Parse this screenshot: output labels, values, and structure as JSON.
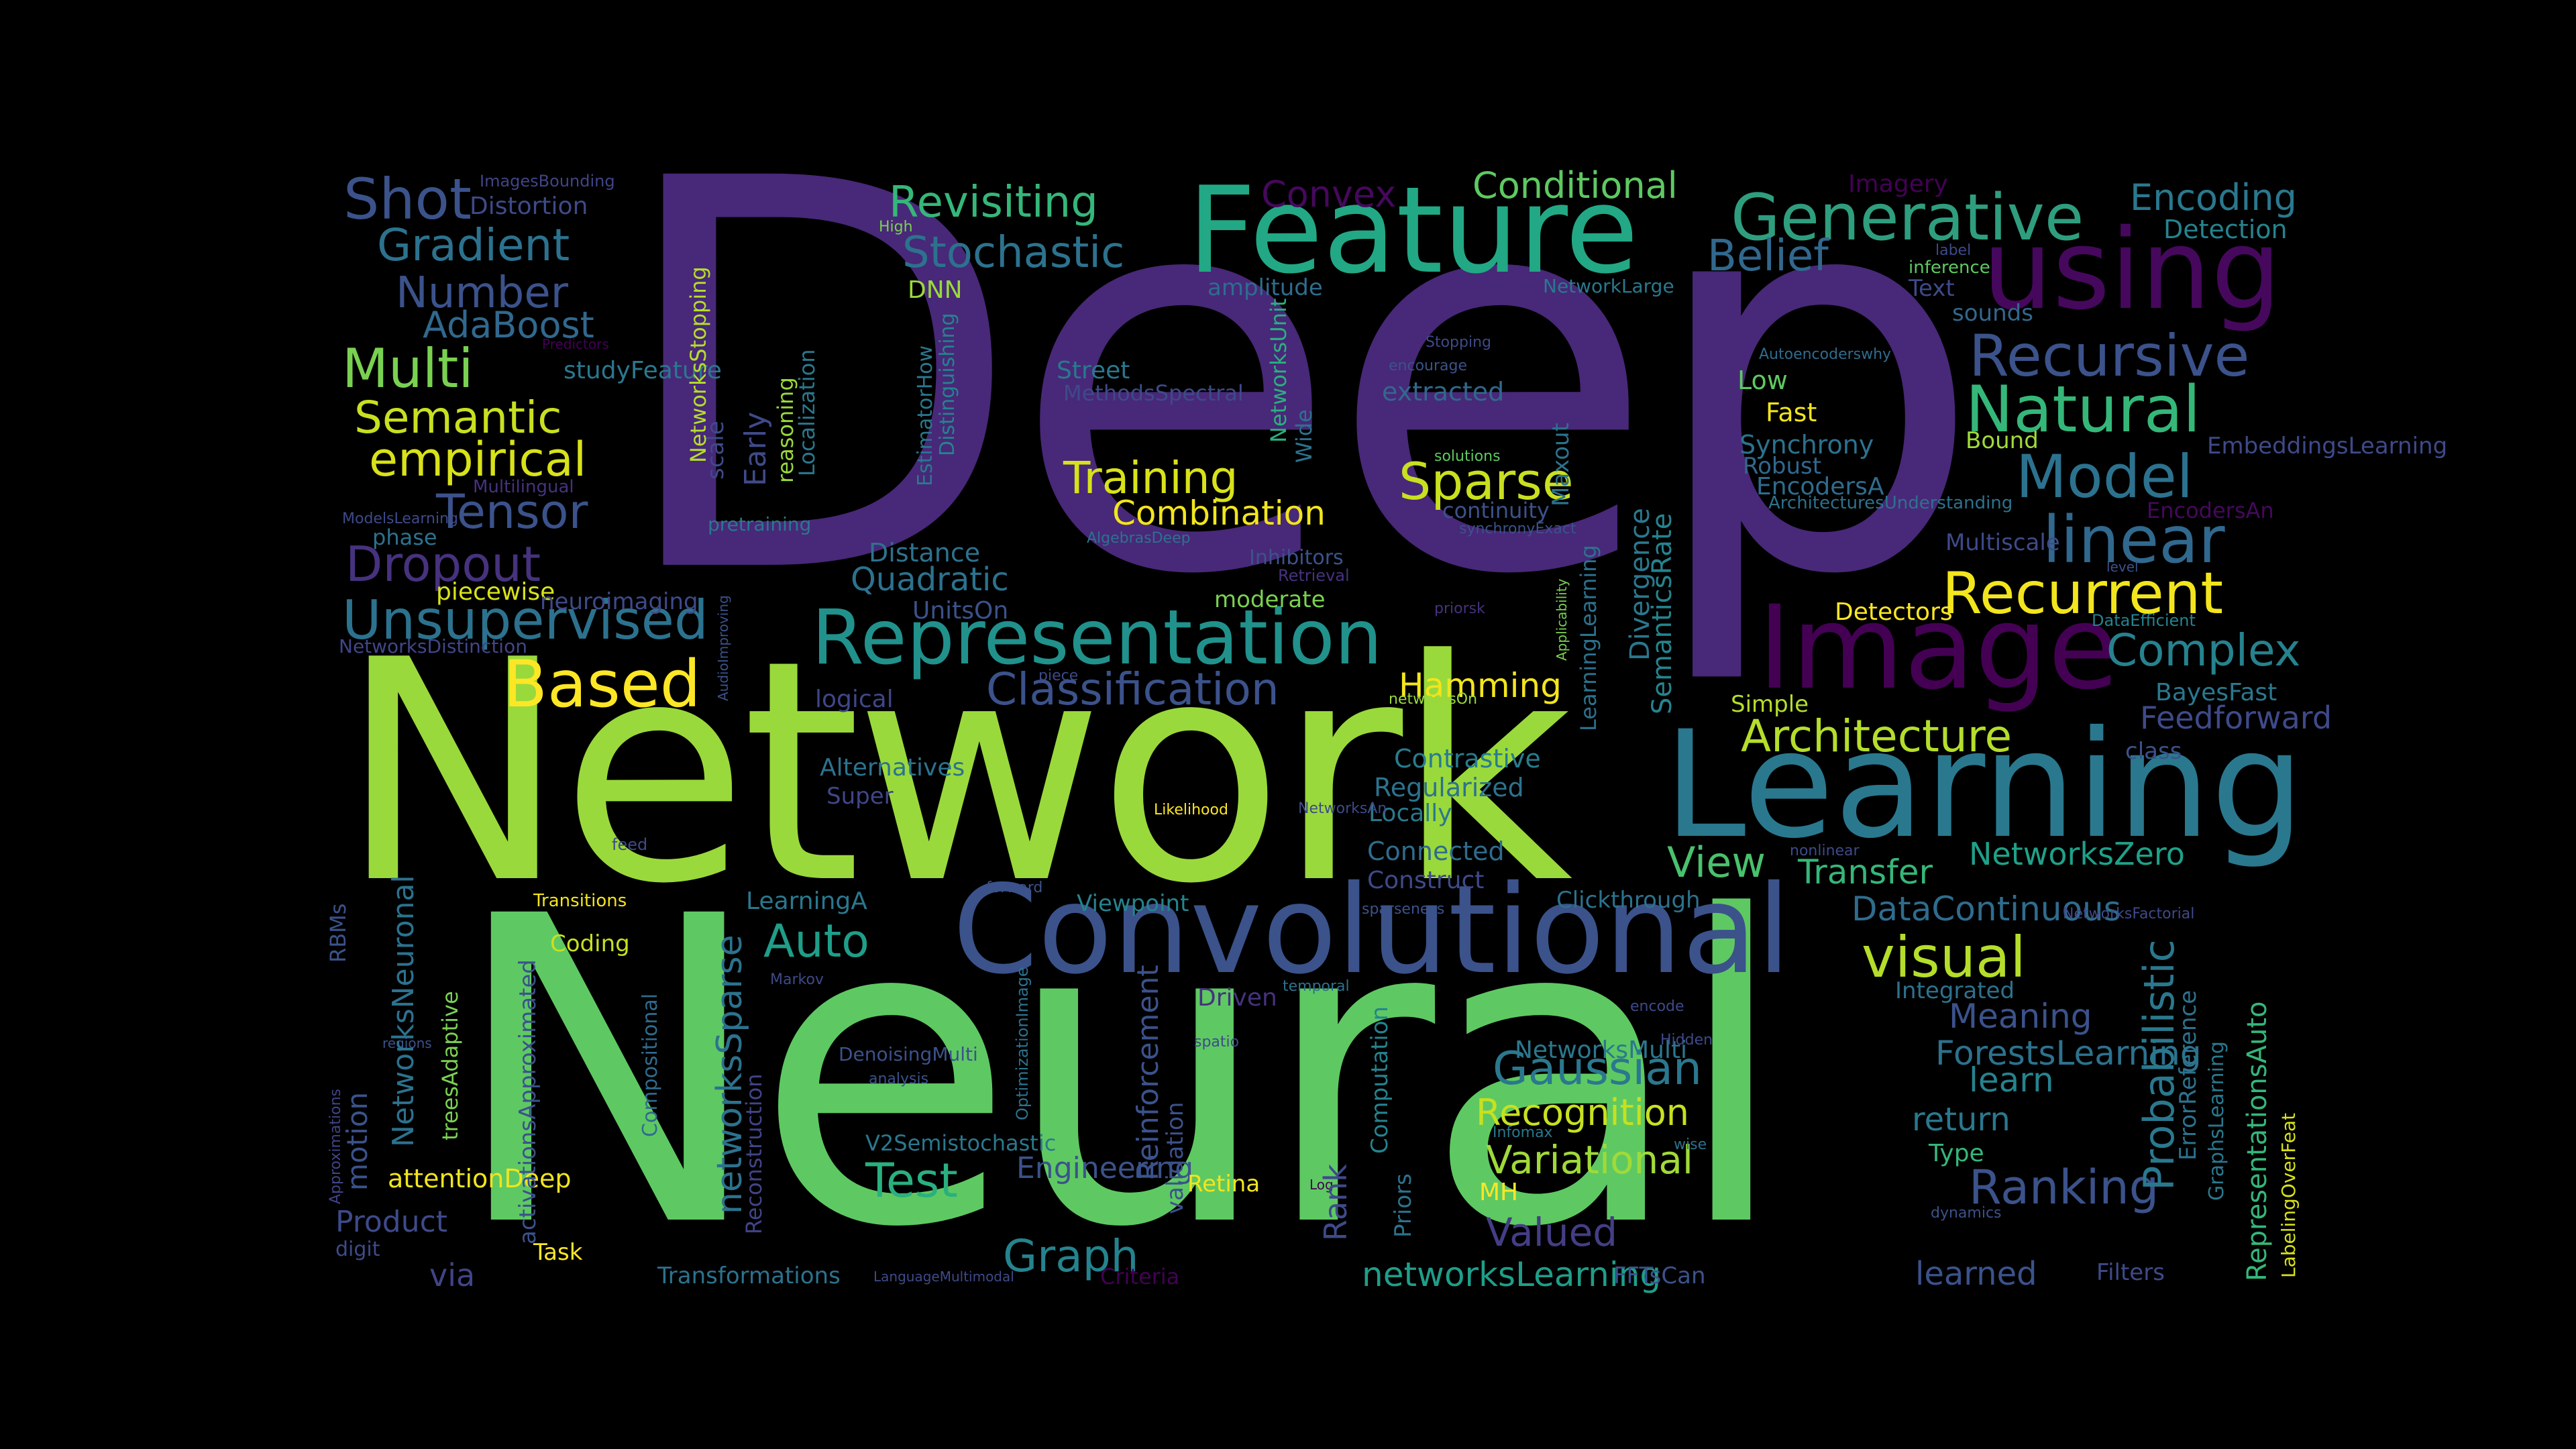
{
  "words": [
    {
      "text": "Deep",
      "color": "#482878"
    },
    {
      "text": "Network",
      "color": "#9ad93b"
    },
    {
      "text": "Neural",
      "color": "#5ec962"
    },
    {
      "text": "Learning",
      "color": "#2a788e"
    },
    {
      "text": "Convolutional",
      "color": "#3b528b"
    },
    {
      "text": "Feature",
      "color": "#22a884"
    },
    {
      "text": "Image",
      "color": "#440154"
    },
    {
      "text": "using",
      "color": "#46085c"
    },
    {
      "text": "Representation",
      "color": "#21918c"
    },
    {
      "text": "Generative",
      "color": "#2f9e7e"
    },
    {
      "text": "Recursive",
      "color": "#3b528b"
    },
    {
      "text": "Natural",
      "color": "#35b779"
    },
    {
      "text": "Model",
      "color": "#2c728e"
    },
    {
      "text": "linear",
      "color": "#31688e"
    },
    {
      "text": "Recurrent",
      "color": "#f2e51d"
    },
    {
      "text": "Complex",
      "color": "#26828e"
    },
    {
      "text": "Based",
      "color": "#fde725"
    },
    {
      "text": "Unsupervised",
      "color": "#2c728e"
    },
    {
      "text": "Dropout",
      "color": "#46327e"
    },
    {
      "text": "Tensor",
      "color": "#3b528b"
    },
    {
      "text": "empirical",
      "color": "#d8e219"
    },
    {
      "text": "Semantic",
      "color": "#c8e020"
    },
    {
      "text": "Multi",
      "color": "#7ad151"
    },
    {
      "text": "AdaBoost",
      "color": "#31688e"
    },
    {
      "text": "Number",
      "color": "#3b528b"
    },
    {
      "text": "Gradient",
      "color": "#2c728e"
    },
    {
      "text": "Shot",
      "color": "#3b528b"
    },
    {
      "text": "Distortion",
      "color": "#3e4a89"
    },
    {
      "text": "ImagesBounding",
      "color": "#414487"
    },
    {
      "text": "Revisiting",
      "color": "#35b779"
    },
    {
      "text": "Stochastic",
      "color": "#2c728e"
    },
    {
      "text": "Convex",
      "color": "#46085c"
    },
    {
      "text": "Conditional",
      "color": "#5ec962"
    },
    {
      "text": "Belief",
      "color": "#31688e"
    },
    {
      "text": "Encoding",
      "color": "#2a788e"
    },
    {
      "text": "Detection",
      "color": "#25838e"
    },
    {
      "text": "Imagery",
      "color": "#440154"
    },
    {
      "text": "Training",
      "color": "#d8e219"
    },
    {
      "text": "Sparse",
      "color": "#c8e020"
    },
    {
      "text": "Classification",
      "color": "#3b528b"
    },
    {
      "text": "Architecture",
      "color": "#b5de2b"
    },
    {
      "text": "View",
      "color": "#4ac16d"
    },
    {
      "text": "visual",
      "color": "#b5de2b"
    },
    {
      "text": "Transfer",
      "color": "#35b779"
    },
    {
      "text": "NetworksZero",
      "color": "#1fa188"
    },
    {
      "text": "Gaussian",
      "color": "#2a788e"
    },
    {
      "text": "Recognition",
      "color": "#c8e020"
    },
    {
      "text": "Variational",
      "color": "#a0da39"
    },
    {
      "text": "Valued",
      "color": "#433e85"
    },
    {
      "text": "Ranking",
      "color": "#3b528b"
    },
    {
      "text": "Test",
      "color": "#2ab07f"
    },
    {
      "text": "Auto",
      "color": "#1f9e89"
    },
    {
      "text": "Graph",
      "color": "#25838e"
    },
    {
      "text": "networksLearning",
      "color": "#1f9e89"
    },
    {
      "text": "via",
      "color": "#414487"
    },
    {
      "text": "Combination",
      "color": "#f2e51d"
    },
    {
      "text": "Feedforward",
      "color": "#3e4a89"
    },
    {
      "text": "BayesFast",
      "color": "#2a788e"
    },
    {
      "text": "Hamming",
      "color": "#f2e51d"
    },
    {
      "text": "Detectors",
      "color": "#fde725"
    },
    {
      "text": "Low",
      "color": "#5ec962"
    },
    {
      "text": "Fast",
      "color": "#f2e51d"
    },
    {
      "text": "Synchrony",
      "color": "#2c728e"
    },
    {
      "text": "Robust",
      "color": "#31688e"
    },
    {
      "text": "EncodersA",
      "color": "#2f6c8e"
    },
    {
      "text": "extracted",
      "color": "#31688e"
    },
    {
      "text": "Distance",
      "color": "#2c728e"
    },
    {
      "text": "Quadratic",
      "color": "#2c728e"
    },
    {
      "text": "UnitsOn",
      "color": "#3b528b"
    },
    {
      "text": "logical",
      "color": "#404688"
    },
    {
      "text": "Contrastive",
      "color": "#287c8e"
    },
    {
      "text": "Regularized",
      "color": "#2c728e"
    },
    {
      "text": "Locally",
      "color": "#2a788e"
    },
    {
      "text": "Connected",
      "color": "#2f6c8e"
    },
    {
      "text": "Construct",
      "color": "#3e4a89"
    },
    {
      "text": "Viewpoint",
      "color": "#25848e"
    },
    {
      "text": "LearningA",
      "color": "#2a788e"
    },
    {
      "text": "DataContinuous",
      "color": "#2f6c8e"
    },
    {
      "text": "Clickthrough",
      "color": "#2c728e"
    },
    {
      "text": "Meaning",
      "color": "#3b528b"
    },
    {
      "text": "ForestsLearning",
      "color": "#2c728e"
    },
    {
      "text": "learn",
      "color": "#25838e"
    },
    {
      "text": "return",
      "color": "#2a788e"
    },
    {
      "text": "Type",
      "color": "#35b779"
    },
    {
      "text": "class",
      "color": "#3b528b"
    },
    {
      "text": "Integrated",
      "color": "#2c728e"
    },
    {
      "text": "Multiscale",
      "color": "#3e4a89"
    },
    {
      "text": "Alternatives",
      "color": "#2c728e"
    },
    {
      "text": "Super",
      "color": "#404688"
    },
    {
      "text": "Simple",
      "color": "#b5de2b"
    },
    {
      "text": "Street",
      "color": "#2a788e"
    },
    {
      "text": "MethodsSpectral",
      "color": "#3e4a89"
    },
    {
      "text": "DNN",
      "color": "#9ad93b"
    },
    {
      "text": "amplitude",
      "color": "#2f6c8e"
    },
    {
      "text": "Coding",
      "color": "#c8e020"
    },
    {
      "text": "Engineering",
      "color": "#3b528b"
    },
    {
      "text": "Retina",
      "color": "#f2e51d"
    },
    {
      "text": "MH",
      "color": "#fde725"
    },
    {
      "text": "Task",
      "color": "#fde725"
    },
    {
      "text": "attentionDeep",
      "color": "#f2e51d"
    },
    {
      "text": "Product",
      "color": "#3e4a89"
    },
    {
      "text": "digit",
      "color": "#3e4a89"
    },
    {
      "text": "Driven",
      "color": "#46327e"
    },
    {
      "text": "learned",
      "color": "#3b528b"
    },
    {
      "text": "Filters",
      "color": "#3e4a89"
    },
    {
      "text": "FFTsCan",
      "color": "#3b528b"
    },
    {
      "text": "Criteria",
      "color": "#440154"
    },
    {
      "text": "Transformations",
      "color": "#2c728e"
    },
    {
      "text": "V2Semistochastic",
      "color": "#2a788e"
    },
    {
      "text": "DenoisingMulti",
      "color": "#3b528b"
    },
    {
      "text": "NetworksMulti",
      "color": "#2a788e"
    },
    {
      "text": "moderate",
      "color": "#7ad151"
    },
    {
      "text": "Inhibitors",
      "color": "#3b528b"
    },
    {
      "text": "Retrieval",
      "color": "#46327e"
    },
    {
      "text": "priorsk",
      "color": "#46327e"
    },
    {
      "text": "feed",
      "color": "#3e4a89"
    },
    {
      "text": "Transitions",
      "color": "#f2e51d"
    },
    {
      "text": "Likelihood",
      "color": "#fde725"
    },
    {
      "text": "pretraining",
      "color": "#2a788e"
    },
    {
      "text": "piecewise",
      "color": "#d8e219"
    },
    {
      "text": "phase",
      "color": "#2c728e"
    },
    {
      "text": "Multilingual",
      "color": "#46327e"
    },
    {
      "text": "NetworksDistinction",
      "color": "#404688"
    },
    {
      "text": "neuroimaging",
      "color": "#3e4a89"
    },
    {
      "text": "studyFeature",
      "color": "#2a788e"
    },
    {
      "text": "Predictors",
      "color": "#440154"
    },
    {
      "text": "High",
      "color": "#7ad151"
    },
    {
      "text": "label",
      "color": "#3e4a89"
    },
    {
      "text": "inference",
      "color": "#5ec962"
    },
    {
      "text": "Text",
      "color": "#3e4a89"
    },
    {
      "text": "sounds",
      "color": "#31688e"
    },
    {
      "text": "Bound",
      "color": "#a0da39"
    },
    {
      "text": "EmbeddingsLearning",
      "color": "#3e4a89"
    },
    {
      "text": "EncodersAn",
      "color": "#46085c"
    },
    {
      "text": "level",
      "color": "#3b528b"
    },
    {
      "text": "DataEfficient",
      "color": "#25838e"
    },
    {
      "text": "ArchitecturesUnderstanding",
      "color": "#2c728e"
    },
    {
      "text": "Autoencoderswhy",
      "color": "#2f6c8e"
    },
    {
      "text": "encourage",
      "color": "#3b528b"
    },
    {
      "text": "Stopping",
      "color": "#3e4a89"
    },
    {
      "text": "NetworkLarge",
      "color": "#2a788e"
    },
    {
      "text": "solutions",
      "color": "#5ec962"
    },
    {
      "text": "continuity",
      "color": "#3b528b"
    },
    {
      "text": "synchronyExact",
      "color": "#3b528b"
    },
    {
      "text": "AlgebrasDeep",
      "color": "#2c728e"
    },
    {
      "text": "piece",
      "color": "#3e4a89"
    },
    {
      "text": "networksOn",
      "color": "#9ad93b"
    },
    {
      "text": "nonlinear",
      "color": "#3e4a89"
    },
    {
      "text": "sparseness",
      "color": "#3b528b"
    },
    {
      "text": "NetworksFactorial",
      "color": "#3e4a89"
    },
    {
      "text": "encode",
      "color": "#3e4a89"
    },
    {
      "text": "Hidden",
      "color": "#3e4a89"
    },
    {
      "text": "temporal",
      "color": "#2c728e"
    },
    {
      "text": "spatio",
      "color": "#3e4a89"
    },
    {
      "text": "Markov",
      "color": "#3e4a89"
    },
    {
      "text": "regions",
      "color": "#3b528b"
    },
    {
      "text": "forward",
      "color": "#3b528b"
    },
    {
      "text": "analysis",
      "color": "#3b528b"
    },
    {
      "text": "wise",
      "color": "#2c728e"
    },
    {
      "text": "Infomax",
      "color": "#2a788e"
    },
    {
      "text": "dynamics",
      "color": "#3b528b"
    },
    {
      "text": "LanguageMultimodal",
      "color": "#3e4a89"
    },
    {
      "text": "NetworksAn",
      "color": "#3e4a89"
    },
    {
      "text": "ModelsLearning",
      "color": "#3e4a89"
    },
    {
      "text": "Log",
      "color": "#440154"
    },
    {
      "text": "scale",
      "color": "#3e4a89"
    },
    {
      "text": "Early",
      "color": "#3e4a89"
    },
    {
      "text": "NetworksStopping",
      "color": "#b5de2b"
    },
    {
      "text": "reasoning",
      "color": "#9ad93b"
    },
    {
      "text": "Localization",
      "color": "#2a788e"
    },
    {
      "text": "EstimatorHow",
      "color": "#2a788e"
    },
    {
      "text": "Distinguishing",
      "color": "#25838e"
    },
    {
      "text": "NetworksUnit",
      "color": "#2ab07f"
    },
    {
      "text": "Wide",
      "color": "#2c728e"
    },
    {
      "text": "Maxout",
      "color": "#2c728e"
    },
    {
      "text": "Divergence",
      "color": "#2a788e"
    },
    {
      "text": "SemanticsRate",
      "color": "#25838e"
    },
    {
      "text": "LearningLearning",
      "color": "#2c728e"
    },
    {
      "text": "Applicability",
      "color": "#7ad151"
    },
    {
      "text": "AudioImproving",
      "color": "#3b528b"
    },
    {
      "text": "RBMs",
      "color": "#3b528b"
    },
    {
      "text": "motion",
      "color": "#3b528b"
    },
    {
      "text": "NetworksNeuronal",
      "color": "#2c728e"
    },
    {
      "text": "treesAdaptive",
      "color": "#7ad151"
    },
    {
      "text": "Approximations",
      "color": "#414487"
    },
    {
      "text": "Compositional",
      "color": "#2f6c8e"
    },
    {
      "text": "activationsApproximated",
      "color": "#3b528b"
    },
    {
      "text": "networksSparse",
      "color": "#2c728e"
    },
    {
      "text": "Reconstruction",
      "color": "#414487"
    },
    {
      "text": "OptimizationImage",
      "color": "#2c728e"
    },
    {
      "text": "validation",
      "color": "#3b528b"
    },
    {
      "text": "Reinforcement",
      "color": "#3b528b"
    },
    {
      "text": "Rank",
      "color": "#3e4a89"
    },
    {
      "text": "Computation",
      "color": "#25838e"
    },
    {
      "text": "Priors",
      "color": "#2c728e"
    },
    {
      "text": "Probabilistic",
      "color": "#2a788e"
    },
    {
      "text": "ErrorReference",
      "color": "#2c728e"
    },
    {
      "text": "RepresentationsAuto",
      "color": "#35b779"
    },
    {
      "text": "GraphsLearning",
      "color": "#2a788e"
    },
    {
      "text": "LabelingOverFeat",
      "color": "#d8e219"
    }
  ]
}
